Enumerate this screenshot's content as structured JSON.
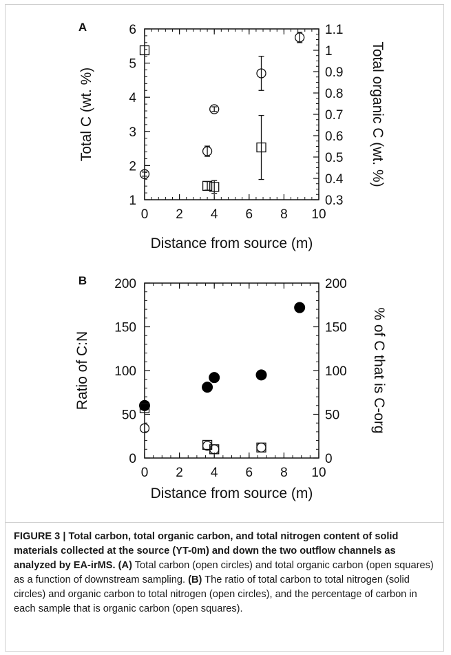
{
  "chart_data": [
    {
      "panel_label": "A",
      "type": "scatter",
      "xlabel": "Distance from source (m)",
      "ylabel_left": "Total C (wt. %)",
      "ylabel_right": "Total organic C (wt. %)",
      "xlim": [
        0,
        10
      ],
      "ylim_left": [
        1,
        6
      ],
      "ylim_right": [
        0.3,
        1.1
      ],
      "xticks": [
        "0",
        "2",
        "4",
        "6",
        "8",
        "10"
      ],
      "yticks_left": [
        "1",
        "2",
        "3",
        "4",
        "5",
        "6"
      ],
      "yticks_right": [
        "0.3",
        "0.4",
        "0.5",
        "0.6",
        "0.7",
        "0.8",
        "0.9",
        "1",
        "1.1"
      ],
      "series": [
        {
          "marker": "open-circle",
          "axis": "left",
          "points": [
            {
              "x": 0,
              "y": 1.75,
              "err": 0.06
            },
            {
              "x": 3.6,
              "y": 2.42,
              "err": 0.15
            },
            {
              "x": 4.0,
              "y": 3.65,
              "err": 0.07
            },
            {
              "x": 6.7,
              "y": 4.7,
              "err": 0.5
            },
            {
              "x": 8.9,
              "y": 5.75,
              "err": 0.15
            }
          ]
        },
        {
          "marker": "open-square",
          "axis": "right",
          "points": [
            {
              "x": 0,
              "y": 1.0,
              "err": 0
            },
            {
              "x": 3.6,
              "y": 0.365,
              "err": 0.02
            },
            {
              "x": 4.0,
              "y": 0.36,
              "err": 0.03
            },
            {
              "x": 6.7,
              "y": 0.545,
              "err": 0.15
            }
          ]
        }
      ]
    },
    {
      "panel_label": "B",
      "type": "scatter",
      "xlabel": "Distance from source (m)",
      "ylabel_left": "Ratio of C:N",
      "ylabel_right": "% of C that is C-org",
      "xlim": [
        0,
        10
      ],
      "ylim_left": [
        0,
        200
      ],
      "ylim_right": [
        0,
        200
      ],
      "xticks": [
        "0",
        "2",
        "4",
        "6",
        "8",
        "10"
      ],
      "yticks_left": [
        "0",
        "50",
        "100",
        "150",
        "200"
      ],
      "yticks_right": [
        "0",
        "50",
        "100",
        "150",
        "200"
      ],
      "series": [
        {
          "marker": "solid-circle",
          "axis": "left",
          "points": [
            {
              "x": 0,
              "y": 60
            },
            {
              "x": 3.6,
              "y": 81
            },
            {
              "x": 4.0,
              "y": 92
            },
            {
              "x": 6.7,
              "y": 95
            },
            {
              "x": 8.9,
              "y": 172
            }
          ]
        },
        {
          "marker": "open-circle",
          "axis": "left",
          "points": [
            {
              "x": 0,
              "y": 34
            },
            {
              "x": 3.6,
              "y": 14
            },
            {
              "x": 4.0,
              "y": 10
            },
            {
              "x": 6.7,
              "y": 12
            }
          ]
        },
        {
          "marker": "open-square",
          "axis": "right",
          "points": [
            {
              "x": 0,
              "y": 57
            },
            {
              "x": 3.6,
              "y": 15
            },
            {
              "x": 4.0,
              "y": 10
            },
            {
              "x": 6.7,
              "y": 12
            }
          ]
        }
      ]
    }
  ],
  "caption": {
    "fig_title": "FIGURE 3 | Total carbon, total organic carbon, and total nitrogen content of solid materials collected at the source (YT-0m) and down the two outflow channels as analyzed by EA-irMS.",
    "a_label": "(A)",
    "a_text": "Total carbon (open circles) and total organic carbon (open squares) as a function of downstream sampling.",
    "b_label": "(B)",
    "b_text": "The ratio of total carbon to total nitrogen (solid circles) and organic carbon to total nitrogen (open circles), and the percentage of carbon in each sample that is organic carbon (open squares)."
  }
}
